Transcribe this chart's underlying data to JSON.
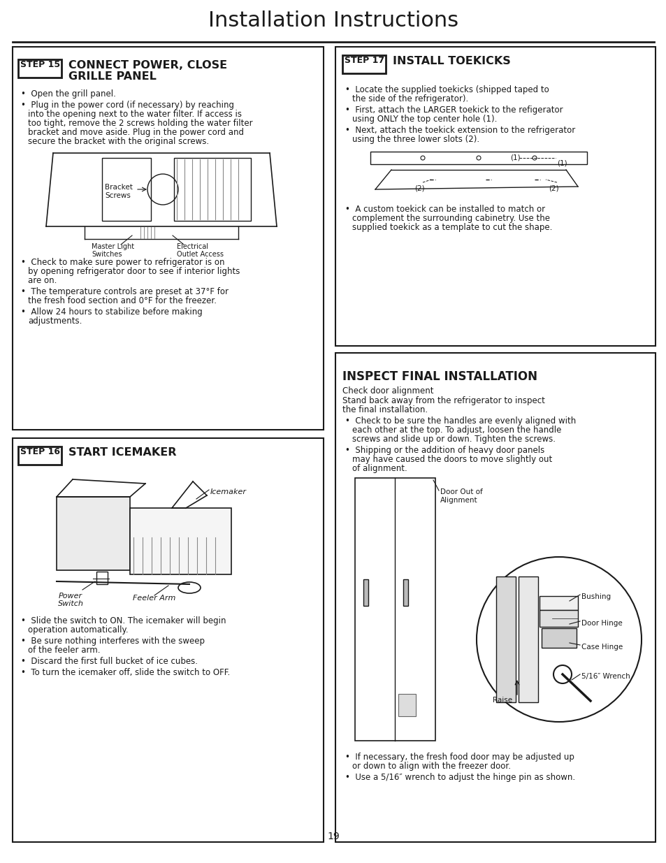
{
  "title": "Installation Instructions",
  "page_number": "19",
  "bg_color": "#ffffff",
  "text_color": "#1a1a1a",
  "box_stroke": "#1a1a1a",
  "step15_heading_box": "STEP 15",
  "step15_heading": "CONNECT POWER, CLOSE\nGRILLE PANEL",
  "step15_bullets": [
    "Open the grill panel.",
    "Plug in the power cord (if necessary) by reaching\n    into the opening next to the water filter. If access is\n    too tight, remove the 2 screws holding the water filter\n    bracket and move aside. Plug in the power cord and\n    secure the bracket with the original screws."
  ],
  "step15_diagram_labels": [
    "Bracket\nScrews",
    "Master Light\nSwitches",
    "Electrical\nOutlet Access"
  ],
  "step15_bullets2": [
    "Check to make sure power to refrigerator is on\n    by opening refrigerator door to see if interior lights\n    are on.",
    "The temperature controls are preset at 37°F for\n    the fresh food section and 0°F for the freezer.",
    "Allow 24 hours to stabilize before making\n    adjustments."
  ],
  "step16_heading_box": "STEP 16",
  "step16_heading": "START ICEMAKER",
  "step16_diagram_labels": [
    "Power\nSwitch",
    "Feeler Arm",
    "Icemaker"
  ],
  "step16_bullets": [
    "Slide the switch to ON. The icemaker will begin\n    operation automatically.",
    "Be sure nothing interferes with the sweep\n    of the feeler arm.",
    "Discard the first full bucket of ice cubes.",
    "To turn the icemaker off, slide the switch to OFF."
  ],
  "step17_heading_box": "STEP 17",
  "step17_heading": "INSTALL TOEKICKS",
  "step17_bullets": [
    "Locate the supplied toekicks (shipped taped to\n    the side of the refrigerator).",
    "First, attach the LARGER toekick to the refigerator\n    using ONLY the top center hole (1).",
    "Next, attach the toekick extension to the refrigerator\n    using the three lower slots (2)."
  ],
  "step17_bullets2": [
    "A custom toekick can be installed to match or\n    complement the surrounding cabinetry. Use the\n    supplied toekick as a template to cut the shape."
  ],
  "inspect_heading": "INSPECT FINAL INSTALLATION",
  "inspect_text": [
    "Check door alignment",
    "Stand back away from the refrigerator to inspect\nthe final installation.",
    "Check to be sure the handles are evenly aligned with\n    each other at the top. To adjust, loosen the handle\n    screws and slide up or down. Tighten the screws.",
    "Shipping or the addition of heavy door panels\n    may have caused the doors to move slightly out\n    of alignment."
  ],
  "inspect_diagram_labels": [
    "Door Out of\nAlignment",
    "Bushing",
    "Door Hinge",
    "Case Hinge",
    "5/16″ Wrench",
    "Raise"
  ],
  "inspect_bullets2": [
    "If necessary, the fresh food door may be adjusted up\n    or down to align with the freezer door.",
    "Use a 5/16″ wrench to adjust the hinge pin as shown."
  ]
}
